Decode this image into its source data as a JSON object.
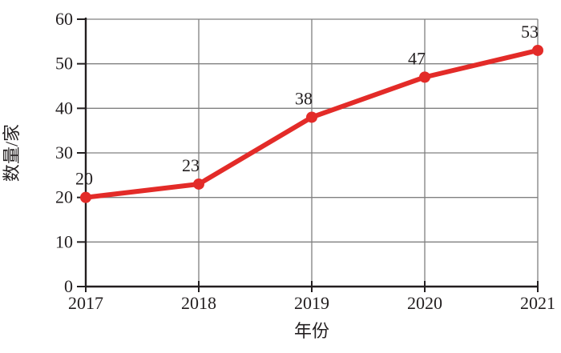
{
  "chart_data": {
    "type": "line",
    "categories": [
      "2017",
      "2018",
      "2019",
      "2020",
      "2021"
    ],
    "values": [
      20,
      23,
      38,
      47,
      53
    ],
    "data_labels": [
      "20",
      "23",
      "38",
      "47",
      "53"
    ],
    "title": "",
    "xlabel": "年份",
    "ylabel": "数量/家",
    "ylim": [
      0,
      60
    ],
    "ytick_step": 10,
    "yticks": [
      "0",
      "10",
      "20",
      "30",
      "40",
      "50",
      "60"
    ],
    "grid": true,
    "legend": "none",
    "line_color": "#e32b28",
    "marker": "circle",
    "marker_color": "#e32b28",
    "grid_color": "#808080",
    "axis_color": "#231f20",
    "text_color": "#231f20",
    "background_color": "#ffffff"
  }
}
